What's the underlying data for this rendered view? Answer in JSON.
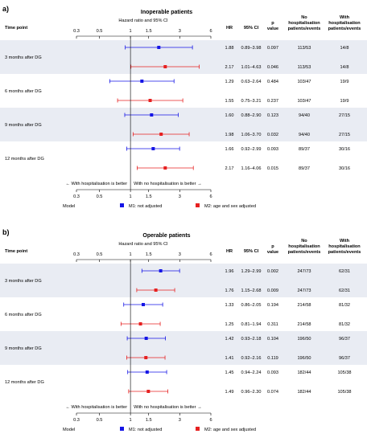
{
  "columns": {
    "time_point": "Time point",
    "axis_label": "Hazard ratio and 95% CI",
    "hr": "HR",
    "ci": "95% CI",
    "p": [
      "p",
      "value"
    ],
    "no_hosp": [
      "No",
      "hospitalisation",
      "patients/events"
    ],
    "with_hosp": [
      "With",
      "hospitalisation",
      "patients/events"
    ]
  },
  "colors": {
    "m1": "#1515e6",
    "m2": "#e62020",
    "band": "#e9ecf3"
  },
  "chart_data": [
    {
      "type": "forest",
      "panel_label": "a)",
      "title": "Inoperable patients",
      "xlabel": "Hazard ratio and 95% CI",
      "x_scale": "log",
      "xlim": [
        0.3,
        6
      ],
      "x_ticks": [
        "0.3",
        "0.5",
        "1",
        "1.5",
        "3",
        "6"
      ],
      "direction_left": "With hospitalisation is better",
      "direction_right": "With no hospitalisation is better",
      "legend": {
        "title": "Model",
        "m1": "M1: not adjusted",
        "m2": "M2: age and sex adjusted"
      },
      "groups": [
        {
          "label": "3 months after DG",
          "rows": [
            {
              "model": "M1",
              "hr": 1.88,
              "lo": 0.89,
              "hi": 3.98,
              "hr_text": "1.88",
              "ci_text": "0.89–3.98",
              "p_text": "0.097",
              "no": "113/53",
              "with": "14/8"
            },
            {
              "model": "M2",
              "hr": 2.17,
              "lo": 1.01,
              "hi": 4.63,
              "hr_text": "2.17",
              "ci_text": "1.01–4.63",
              "p_text": "0.046",
              "no": "113/53",
              "with": "14/8"
            }
          ]
        },
        {
          "label": "6 months after DG",
          "rows": [
            {
              "model": "M1",
              "hr": 1.29,
              "lo": 0.63,
              "hi": 2.64,
              "hr_text": "1.29",
              "ci_text": "0.63–2.64",
              "p_text": "0.484",
              "no": "103/47",
              "with": "19/9"
            },
            {
              "model": "M2",
              "hr": 1.55,
              "lo": 0.75,
              "hi": 3.21,
              "hr_text": "1.55",
              "ci_text": "0.75–3.21",
              "p_text": "0.237",
              "no": "103/47",
              "with": "19/9"
            }
          ]
        },
        {
          "label": "9 months after DG",
          "rows": [
            {
              "model": "M1",
              "hr": 1.6,
              "lo": 0.88,
              "hi": 2.9,
              "hr_text": "1.60",
              "ci_text": "0.88–2.90",
              "p_text": "0.123",
              "no": "94/40",
              "with": "27/15"
            },
            {
              "model": "M2",
              "hr": 1.98,
              "lo": 1.06,
              "hi": 3.7,
              "hr_text": "1.98",
              "ci_text": "1.06–3.70",
              "p_text": "0.032",
              "no": "94/40",
              "with": "27/15"
            }
          ]
        },
        {
          "label": "12 months after DG",
          "rows": [
            {
              "model": "M1",
              "hr": 1.66,
              "lo": 0.92,
              "hi": 2.99,
              "hr_text": "1.66",
              "ci_text": "0.92–2.99",
              "p_text": "0.093",
              "no": "89/37",
              "with": "30/16"
            },
            {
              "model": "M2",
              "hr": 2.17,
              "lo": 1.16,
              "hi": 4.06,
              "hr_text": "2.17",
              "ci_text": "1.16–4.06",
              "p_text": "0.015",
              "no": "89/37",
              "with": "30/16"
            }
          ]
        }
      ]
    },
    {
      "type": "forest",
      "panel_label": "b)",
      "title": "Operable patients",
      "xlabel": "Hazard ratio and 95% CI",
      "x_scale": "log",
      "xlim": [
        0.3,
        6
      ],
      "x_ticks": [
        "0.3",
        "0.5",
        "1",
        "1.5",
        "3",
        "6"
      ],
      "direction_left": "With hospitalisation is better",
      "direction_right": "With no hospitalisation is better",
      "legend": {
        "title": "Model",
        "m1": "M1: not adjusted",
        "m2": "M2: age and sex adjusted"
      },
      "groups": [
        {
          "label": "3 months after DG",
          "rows": [
            {
              "model": "M1",
              "hr": 1.96,
              "lo": 1.29,
              "hi": 2.99,
              "hr_text": "1.96",
              "ci_text": "1.29–2.99",
              "p_text": "0.002",
              "no": "247/73",
              "with": "62/31"
            },
            {
              "model": "M2",
              "hr": 1.76,
              "lo": 1.15,
              "hi": 2.68,
              "hr_text": "1.76",
              "ci_text": "1.15–2.68",
              "p_text": "0.009",
              "no": "247/73",
              "with": "62/31"
            }
          ]
        },
        {
          "label": "6 months after DG",
          "rows": [
            {
              "model": "M1",
              "hr": 1.33,
              "lo": 0.86,
              "hi": 2.05,
              "hr_text": "1.33",
              "ci_text": "0.86–2.05",
              "p_text": "0.194",
              "no": "214/58",
              "with": "81/32"
            },
            {
              "model": "M2",
              "hr": 1.25,
              "lo": 0.81,
              "hi": 1.94,
              "hr_text": "1.25",
              "ci_text": "0.81–1.94",
              "p_text": "0.311",
              "no": "214/58",
              "with": "81/32"
            }
          ]
        },
        {
          "label": "9 months after DG",
          "rows": [
            {
              "model": "M1",
              "hr": 1.42,
              "lo": 0.93,
              "hi": 2.18,
              "hr_text": "1.42",
              "ci_text": "0.93–2.18",
              "p_text": "0.104",
              "no": "196/50",
              "with": "96/37"
            },
            {
              "model": "M2",
              "hr": 1.41,
              "lo": 0.92,
              "hi": 2.16,
              "hr_text": "1.41",
              "ci_text": "0.92–2.16",
              "p_text": "0.119",
              "no": "196/50",
              "with": "96/37"
            }
          ]
        },
        {
          "label": "12 months after DG",
          "rows": [
            {
              "model": "M1",
              "hr": 1.45,
              "lo": 0.94,
              "hi": 2.24,
              "hr_text": "1.45",
              "ci_text": "0.94–2.24",
              "p_text": "0.093",
              "no": "182/44",
              "with": "105/38"
            },
            {
              "model": "M2",
              "hr": 1.49,
              "lo": 0.96,
              "hi": 2.3,
              "hr_text": "1.49",
              "ci_text": "0.96–2.30",
              "p_text": "0.074",
              "no": "182/44",
              "with": "105/38"
            }
          ]
        }
      ]
    }
  ]
}
